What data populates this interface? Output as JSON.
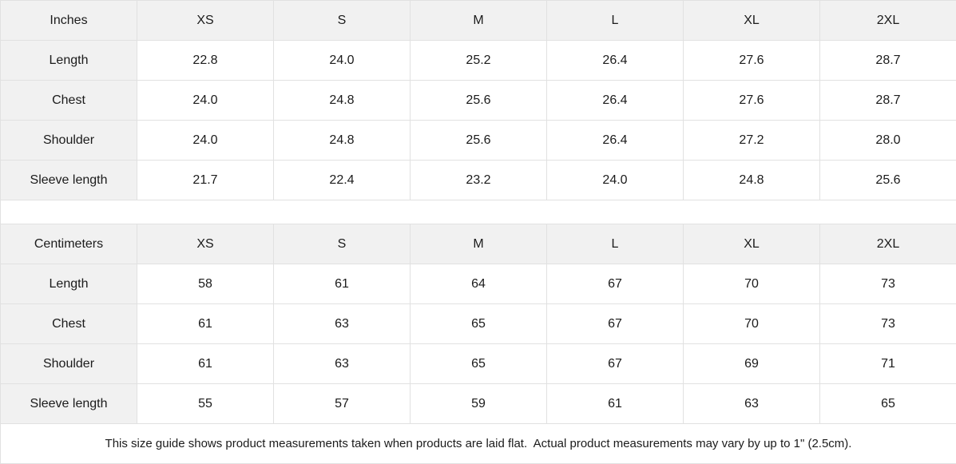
{
  "colors": {
    "header_bg": "#f1f1f1",
    "cell_bg": "#ffffff",
    "border": "#e1e1e1",
    "text": "#1b1b1b"
  },
  "tables": [
    {
      "unit_label": "Inches",
      "sizes": [
        "XS",
        "S",
        "M",
        "L",
        "XL",
        "2XL"
      ],
      "rows": [
        {
          "label": "Length",
          "values": [
            "22.8",
            "24.0",
            "25.2",
            "26.4",
            "27.6",
            "28.7"
          ]
        },
        {
          "label": "Chest",
          "values": [
            "24.0",
            "24.8",
            "25.6",
            "26.4",
            "27.6",
            "28.7"
          ]
        },
        {
          "label": "Shoulder",
          "values": [
            "24.0",
            "24.8",
            "25.6",
            "26.4",
            "27.2",
            "28.0"
          ]
        },
        {
          "label": "Sleeve length",
          "values": [
            "21.7",
            "22.4",
            "23.2",
            "24.0",
            "24.8",
            "25.6"
          ]
        }
      ]
    },
    {
      "unit_label": "Centimeters",
      "sizes": [
        "XS",
        "S",
        "M",
        "L",
        "XL",
        "2XL"
      ],
      "rows": [
        {
          "label": "Length",
          "values": [
            "58",
            "61",
            "64",
            "67",
            "70",
            "73"
          ]
        },
        {
          "label": "Chest",
          "values": [
            "61",
            "63",
            "65",
            "67",
            "70",
            "73"
          ]
        },
        {
          "label": "Shoulder",
          "values": [
            "61",
            "63",
            "65",
            "67",
            "69",
            "71"
          ]
        },
        {
          "label": "Sleeve length",
          "values": [
            "55",
            "57",
            "59",
            "61",
            "63",
            "65"
          ]
        }
      ]
    }
  ],
  "footer": {
    "note": "This size guide shows product measurements taken when products are laid flat.  Actual product measurements may vary by up to 1\" (2.5cm)."
  },
  "chart_data": [
    {
      "type": "table",
      "title": "Inches",
      "columns": [
        "Inches",
        "XS",
        "S",
        "M",
        "L",
        "XL",
        "2XL"
      ],
      "rows": [
        [
          "Length",
          22.8,
          24.0,
          25.2,
          26.4,
          27.6,
          28.7
        ],
        [
          "Chest",
          24.0,
          24.8,
          25.6,
          26.4,
          27.6,
          28.7
        ],
        [
          "Shoulder",
          24.0,
          24.8,
          25.6,
          26.4,
          27.2,
          28.0
        ],
        [
          "Sleeve length",
          21.7,
          22.4,
          23.2,
          24.0,
          24.8,
          25.6
        ]
      ]
    },
    {
      "type": "table",
      "title": "Centimeters",
      "columns": [
        "Centimeters",
        "XS",
        "S",
        "M",
        "L",
        "XL",
        "2XL"
      ],
      "rows": [
        [
          "Length",
          58,
          61,
          64,
          67,
          70,
          73
        ],
        [
          "Chest",
          61,
          63,
          65,
          67,
          70,
          73
        ],
        [
          "Shoulder",
          61,
          63,
          65,
          67,
          69,
          71
        ],
        [
          "Sleeve length",
          55,
          57,
          59,
          61,
          63,
          65
        ]
      ]
    }
  ]
}
